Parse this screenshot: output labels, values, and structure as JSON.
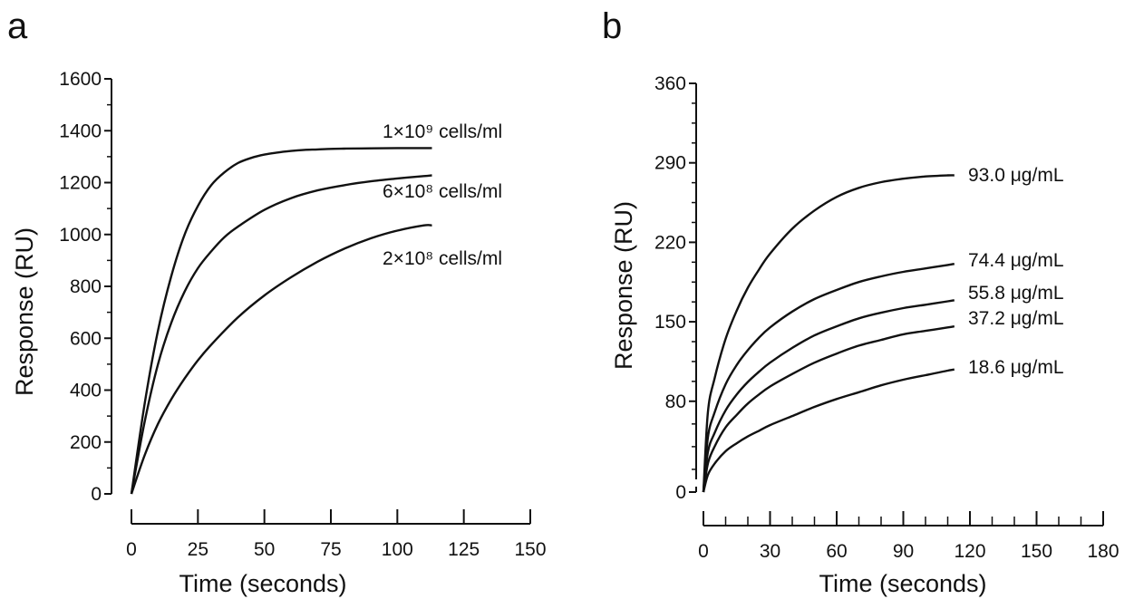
{
  "chart_data": [
    {
      "panel": "a",
      "type": "line",
      "xlabel": "Time (seconds)",
      "ylabel": "Response (RU)",
      "xlim": [
        0,
        150
      ],
      "ylim": [
        0,
        1600
      ],
      "xticks": [
        0,
        25,
        50,
        75,
        100,
        125,
        150
      ],
      "yticks": [
        0,
        200,
        400,
        600,
        800,
        1000,
        1200,
        1400,
        1600
      ],
      "grid": false,
      "series": [
        {
          "name": "1×10⁹ cells/ml",
          "label_text": "1×10⁹ cells/ml",
          "x": [
            0,
            5,
            10,
            15,
            20,
            25,
            30,
            35,
            40,
            45,
            50,
            55,
            60,
            65,
            70,
            75,
            80,
            90,
            100,
            110,
            113
          ],
          "y": [
            0,
            350,
            630,
            840,
            1000,
            1110,
            1190,
            1240,
            1275,
            1295,
            1308,
            1316,
            1322,
            1326,
            1328,
            1330,
            1331,
            1332,
            1333,
            1333,
            1333
          ]
        },
        {
          "name": "6×10⁸ cells/ml",
          "label_text": "6×10⁸ cells/ml",
          "x": [
            0,
            5,
            10,
            15,
            20,
            25,
            30,
            35,
            40,
            50,
            60,
            70,
            80,
            90,
            100,
            110,
            113
          ],
          "y": [
            0,
            280,
            500,
            660,
            780,
            870,
            935,
            990,
            1030,
            1095,
            1140,
            1170,
            1190,
            1205,
            1216,
            1225,
            1228
          ]
        },
        {
          "name": "2×10⁸ cells/ml",
          "label_text": "2×10⁸ cells/ml",
          "x": [
            0,
            5,
            10,
            15,
            20,
            25,
            30,
            40,
            50,
            60,
            70,
            80,
            90,
            100,
            110,
            113
          ],
          "y": [
            0,
            150,
            270,
            365,
            445,
            515,
            575,
            680,
            765,
            835,
            895,
            945,
            985,
            1015,
            1035,
            1035
          ]
        }
      ]
    },
    {
      "panel": "b",
      "type": "line",
      "xlabel": "Time (seconds)",
      "ylabel": "Response (RU)",
      "xlim": [
        0,
        180
      ],
      "ylim": [
        0,
        360
      ],
      "xticks": [
        0,
        30,
        60,
        90,
        120,
        150,
        180
      ],
      "yticks": [
        0,
        80,
        150,
        220,
        290,
        360
      ],
      "grid": false,
      "series": [
        {
          "name": "93.0 μg/mL",
          "label_text": "93.0 μg/mL",
          "x": [
            0,
            2,
            5,
            10,
            15,
            20,
            25,
            30,
            40,
            50,
            60,
            70,
            80,
            90,
            100,
            110,
            113
          ],
          "y": [
            0,
            70,
            100,
            135,
            160,
            180,
            196,
            210,
            232,
            248,
            260,
            268,
            273,
            276,
            278,
            279,
            279
          ]
        },
        {
          "name": "74.4 μg/mL",
          "label_text": "74.4 μg/mL",
          "x": [
            0,
            2,
            5,
            10,
            15,
            20,
            25,
            30,
            40,
            50,
            60,
            70,
            80,
            90,
            100,
            110,
            113
          ],
          "y": [
            0,
            48,
            70,
            95,
            112,
            125,
            136,
            145,
            159,
            170,
            178,
            185,
            190,
            194,
            197,
            200,
            201
          ]
        },
        {
          "name": "55.8 μg/mL",
          "label_text": "55.8 μg/mL",
          "x": [
            0,
            2,
            5,
            10,
            15,
            20,
            25,
            30,
            40,
            50,
            60,
            70,
            80,
            90,
            100,
            110,
            113
          ],
          "y": [
            0,
            35,
            52,
            72,
            86,
            97,
            106,
            114,
            127,
            138,
            146,
            153,
            158,
            162,
            165,
            168,
            169
          ]
        },
        {
          "name": "37.2 μg/mL",
          "label_text": "37.2 μg/mL",
          "x": [
            0,
            2,
            5,
            10,
            15,
            20,
            25,
            30,
            40,
            50,
            60,
            70,
            80,
            90,
            100,
            110,
            113
          ],
          "y": [
            0,
            25,
            40,
            57,
            68,
            78,
            86,
            93,
            104,
            114,
            122,
            129,
            134,
            139,
            142,
            145,
            146
          ]
        },
        {
          "name": "18.6 μg/mL",
          "label_text": "18.6 μg/mL",
          "x": [
            0,
            2,
            5,
            10,
            15,
            20,
            25,
            30,
            40,
            50,
            60,
            70,
            80,
            90,
            100,
            110,
            113
          ],
          "y": [
            0,
            15,
            25,
            36,
            43,
            49,
            54,
            59,
            67,
            75,
            82,
            88,
            94,
            99,
            103,
            107,
            108
          ]
        }
      ]
    }
  ],
  "colors": {
    "line": "#111111",
    "background": "#ffffff"
  }
}
